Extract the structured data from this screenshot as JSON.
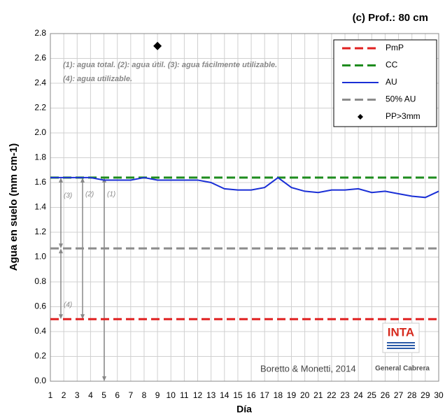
{
  "chart_data": {
    "type": "line",
    "title": "(c) Prof.: 80 cm",
    "x_label": "Día",
    "y_label": "Agua en suelo (mm cm-1)",
    "annotations": [
      "(1): agua total.  (2): agua útil.  (3): agua fácilmente utilizable.",
      "(4): agua utilizable.",
      "(1)",
      "(2)",
      "(3)",
      "(4)",
      "Boretto & Monetti, 2014"
    ],
    "logo": {
      "title": "INTA",
      "subtitle": "General Cabrera"
    },
    "x": [
      1,
      2,
      3,
      4,
      5,
      6,
      7,
      8,
      9,
      10,
      11,
      12,
      13,
      14,
      15,
      16,
      17,
      18,
      19,
      20,
      21,
      22,
      23,
      24,
      25,
      26,
      27,
      28,
      29,
      30
    ],
    "xlim": [
      1,
      30
    ],
    "xticks": [
      1,
      2,
      3,
      4,
      5,
      6,
      7,
      8,
      9,
      10,
      11,
      12,
      13,
      14,
      15,
      16,
      17,
      18,
      19,
      20,
      21,
      22,
      23,
      24,
      25,
      26,
      27,
      28,
      29,
      30
    ],
    "ylim": [
      0,
      2.8
    ],
    "yticks": [
      {
        "value": 0,
        "label": "0.0"
      },
      0.2,
      0.4,
      0.6,
      0.8,
      {
        "value": 1,
        "label": "1.0"
      },
      1.2,
      1.4,
      1.6,
      1.8,
      {
        "value": 2,
        "label": "2.0"
      },
      2.2,
      2.4,
      2.6,
      2.8
    ],
    "grid": true,
    "legend": "top-right",
    "series": [
      {
        "name": "PmP",
        "color": "#e02020",
        "style": "dashed",
        "values": [
          0.5,
          0.5,
          0.5,
          0.5,
          0.5,
          0.5,
          0.5,
          0.5,
          0.5,
          0.5,
          0.5,
          0.5,
          0.5,
          0.5,
          0.5,
          0.5,
          0.5,
          0.5,
          0.5,
          0.5,
          0.5,
          0.5,
          0.5,
          0.5,
          0.5,
          0.5,
          0.5,
          0.5,
          0.5,
          0.5
        ]
      },
      {
        "name": "CC",
        "color": "#1e8c1e",
        "style": "dashed",
        "values": [
          1.64,
          1.64,
          1.64,
          1.64,
          1.64,
          1.64,
          1.64,
          1.64,
          1.64,
          1.64,
          1.64,
          1.64,
          1.64,
          1.64,
          1.64,
          1.64,
          1.64,
          1.64,
          1.64,
          1.64,
          1.64,
          1.64,
          1.64,
          1.64,
          1.64,
          1.64,
          1.64,
          1.64,
          1.64,
          1.64
        ]
      },
      {
        "name": "AU",
        "color": "#1a2fd6",
        "style": "solid",
        "values": [
          1.64,
          1.64,
          1.64,
          1.64,
          1.62,
          1.62,
          1.62,
          1.64,
          1.62,
          1.62,
          1.62,
          1.62,
          1.6,
          1.55,
          1.54,
          1.54,
          1.56,
          1.64,
          1.56,
          1.53,
          1.52,
          1.54,
          1.54,
          1.55,
          1.52,
          1.53,
          1.51,
          1.49,
          1.48,
          1.53
        ]
      },
      {
        "name": "50% AU",
        "color": "#8c8c8c",
        "style": "dashed",
        "values": [
          1.07,
          1.07,
          1.07,
          1.07,
          1.07,
          1.07,
          1.07,
          1.07,
          1.07,
          1.07,
          1.07,
          1.07,
          1.07,
          1.07,
          1.07,
          1.07,
          1.07,
          1.07,
          1.07,
          1.07,
          1.07,
          1.07,
          1.07,
          1.07,
          1.07,
          1.07,
          1.07,
          1.07,
          1.07,
          1.07
        ]
      },
      {
        "name": "PP>3mm",
        "color": "#000000",
        "style": "marker",
        "x": [
          9
        ],
        "values": [
          2.7
        ]
      }
    ]
  }
}
